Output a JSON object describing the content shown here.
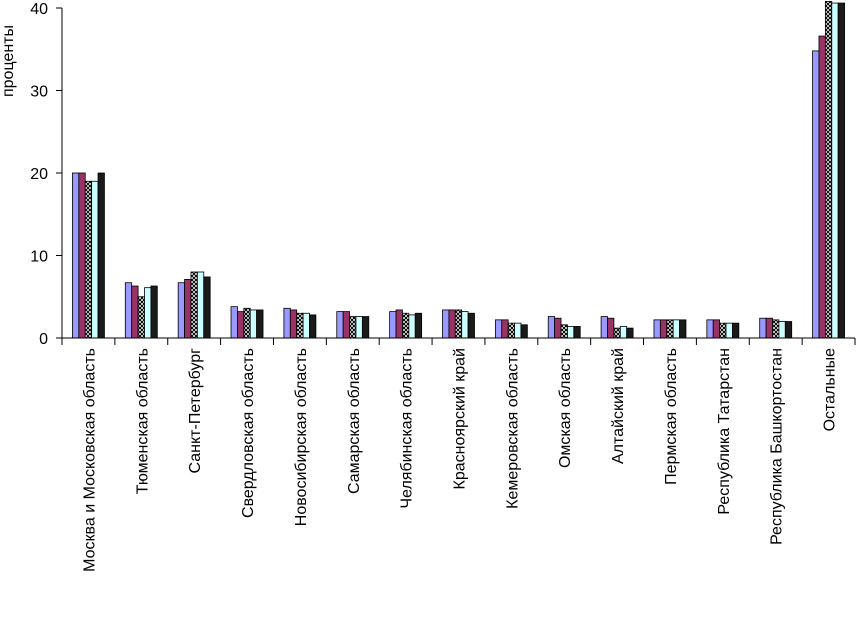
{
  "chart_data": {
    "type": "bar",
    "y_label": "проценты",
    "categories": [
      "Москва и Московская область",
      "Тюменская область",
      "Санкт-Петербург",
      "Свердловская область",
      "Новосибирская область",
      "Самарская область",
      "Челябинская область",
      "Красноярский край",
      "Кемеровская область",
      "Омская область",
      "Алтайский край",
      "Пермская область",
      "Республика Татарстан",
      "Республика Башкортостан",
      "Остальные"
    ],
    "series": [
      {
        "color": "#9999ff",
        "values": [
          20,
          6.7,
          6.7,
          3.8,
          3.6,
          3.2,
          3.2,
          3.4,
          2.2,
          2.6,
          2.6,
          2.2,
          2.2,
          2.4,
          34.8
        ]
      },
      {
        "color": "#993366",
        "values": [
          20,
          6.3,
          7.1,
          3.2,
          3.4,
          3.2,
          3.4,
          3.4,
          2.2,
          2.4,
          2.4,
          2.2,
          2.2,
          2.4,
          36.6
        ]
      },
      {
        "color": "#ffffff",
        "pattern": "crosshatch",
        "values": [
          19,
          5,
          8,
          3.6,
          3.0,
          2.6,
          3.0,
          3.4,
          1.8,
          1.6,
          1.2,
          2.2,
          1.8,
          2.2,
          40.8
        ]
      },
      {
        "color": "#ccffff",
        "values": [
          19,
          6.1,
          8,
          3.4,
          3.0,
          2.6,
          2.8,
          3.2,
          1.8,
          1.4,
          1.4,
          2.2,
          1.8,
          2.0,
          40.6
        ]
      },
      {
        "color": "#1a1a1a",
        "values": [
          20,
          6.3,
          7.4,
          3.4,
          2.8,
          2.6,
          3.0,
          3.0,
          1.6,
          1.4,
          1.2,
          2.2,
          1.8,
          2.0,
          40.6
        ]
      }
    ],
    "ylim": [
      0,
      40
    ],
    "yticks": [
      0,
      10,
      20,
      30,
      40
    ],
    "grid": false
  }
}
